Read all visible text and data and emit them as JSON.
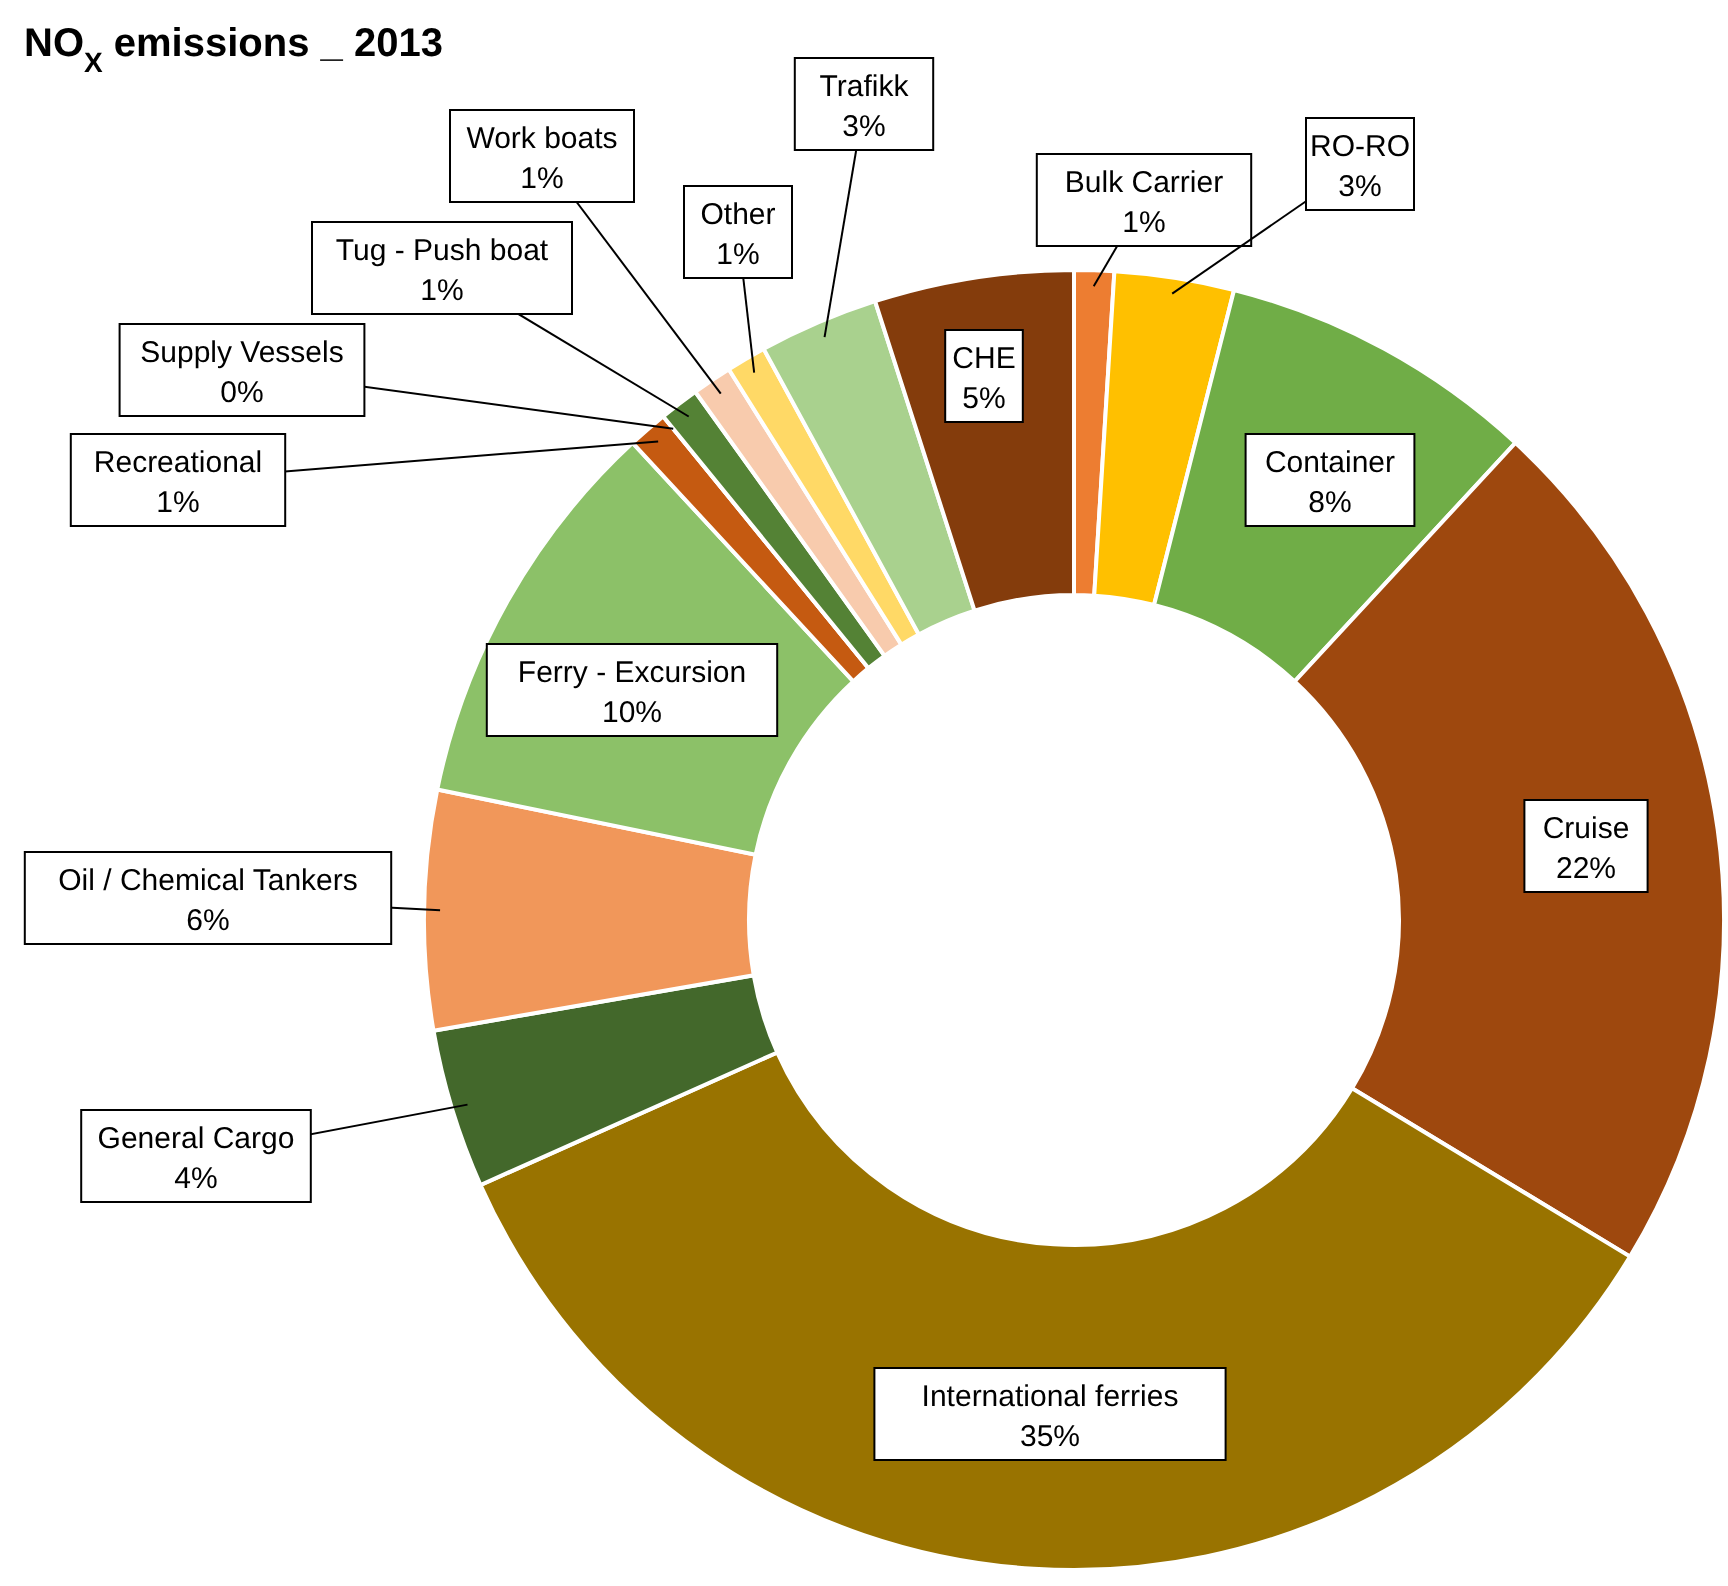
{
  "chart_data": {
    "type": "donut",
    "title": "NO$_{X}$ emissions _ 2013",
    "categories": [
      "Bulk Carrier",
      "RO-RO",
      "Container",
      "Cruise",
      "International ferries",
      "General Cargo",
      "Oil / Chemical Tankers",
      "Ferry - Excursion",
      "Recreational",
      "Supply Vessels",
      "Tug - Push boat",
      "Work boats",
      "Other",
      "Trafikk",
      "CHE"
    ],
    "values": [
      1,
      3,
      8,
      22,
      35,
      4,
      6,
      10,
      1,
      0,
      1,
      1,
      1,
      3,
      5
    ],
    "value_labels": [
      "1%",
      "3%",
      "8%",
      "22%",
      "35%",
      "4%",
      "6%",
      "10%",
      "1%",
      "0%",
      "1%",
      "1%",
      "1%",
      "3%",
      "5%"
    ],
    "colors": [
      "#ed7d31",
      "#ffc000",
      "#70ad47",
      "#9e480e",
      "#997300",
      "#43682b",
      "#f1975a",
      "#8cc168",
      "#c55a11",
      "#f4b183",
      "#548235",
      "#f8cbad",
      "#ffd966",
      "#a9d18e",
      "#843c0c"
    ]
  }
}
